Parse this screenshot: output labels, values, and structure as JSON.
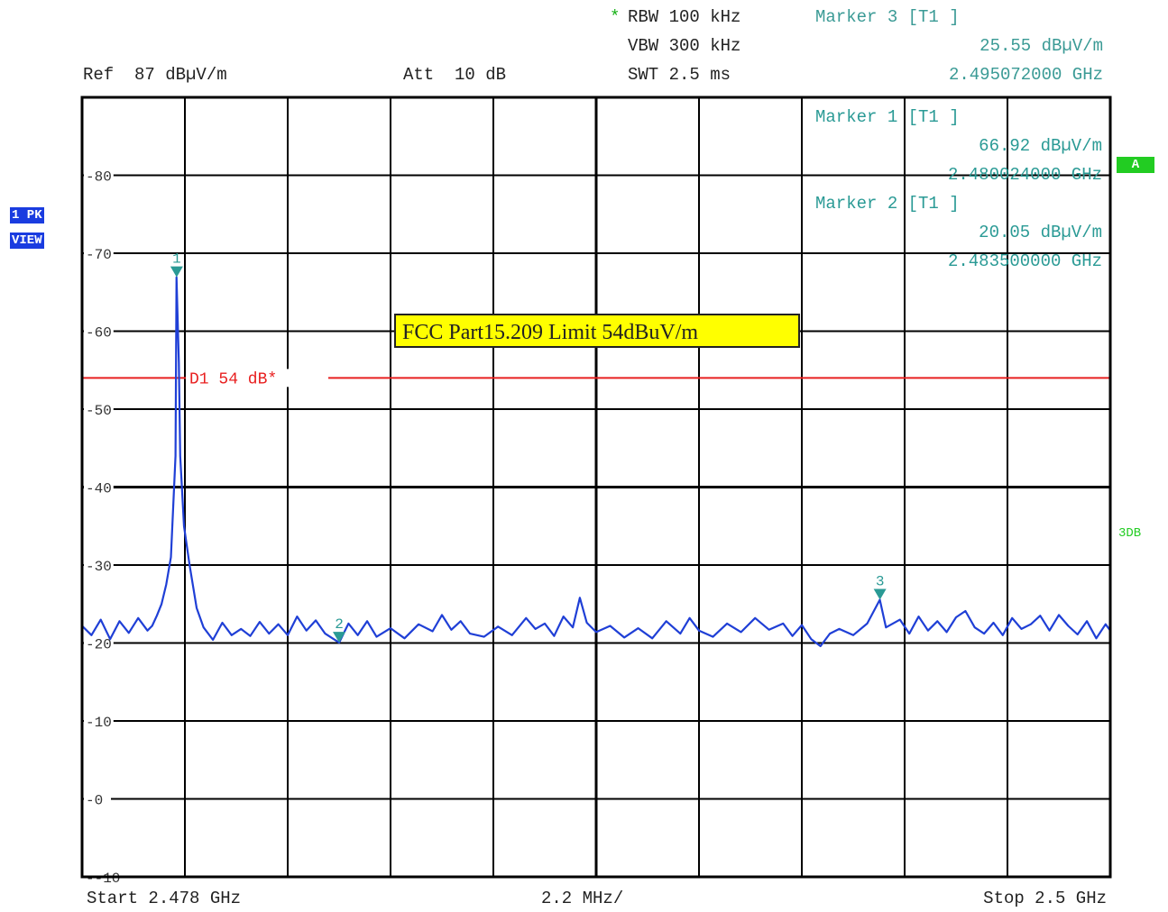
{
  "header": {
    "rbw_star": "*",
    "rbw": "RBW 100 kHz",
    "vbw": "VBW 300 kHz",
    "swt": "SWT 2.5 ms",
    "ref": "Ref  87 dBµV/m",
    "att": "Att  10 dB"
  },
  "markers_text": {
    "m3_title": "Marker 3 [T1 ]",
    "m3_level": "25.55 dBµV/m",
    "m3_freq": "2.495072000 GHz",
    "m1_title": "Marker 1 [T1 ]",
    "m1_level": "66.92 dBµV/m",
    "m1_freq": "2.480024000 GHz",
    "m2_title": "Marker 2 [T1 ]",
    "m2_level": "20.05 dBµV/m",
    "m2_freq": "2.483500000 GHz"
  },
  "side": {
    "pk_label": "1 PK",
    "view_label": "VIEW",
    "a_label": "A",
    "threedb_label": "3DB"
  },
  "footer": {
    "start": "Start 2.478 GHz",
    "span_div": "2.2 MHz/",
    "stop": "Stop 2.5 GHz"
  },
  "colors": {
    "trace": "#1f3fd6",
    "limit_line": "#e82020",
    "marker": "#2a9a95",
    "grid": "#000000",
    "annotation_bg": "#ffff00"
  },
  "chart_data": {
    "type": "line",
    "x_unit": "GHz",
    "y_unit": "dBµV/m",
    "xlim": [
      2.478,
      2.5
    ],
    "ylim": [
      -10,
      90
    ],
    "x_div": 0.0022,
    "ytick_labels": [
      "80",
      "70",
      "60",
      "50",
      "40",
      "30",
      "20",
      "10",
      "0",
      "-10"
    ],
    "grid": true,
    "limit_line": {
      "label": "D1 54 dB*",
      "value": 54
    },
    "annotation": "FCC Part15.209 Limit 54dBuV/m",
    "markers": [
      {
        "label": "1",
        "x": 2.480024,
        "y": 66.92
      },
      {
        "label": "2",
        "x": 2.4835,
        "y": 20.05
      },
      {
        "label": "3",
        "x": 2.495072,
        "y": 25.55
      }
    ],
    "series": [
      {
        "points": [
          [
            2.478,
            22.2
          ],
          [
            2.4782,
            21.0
          ],
          [
            2.4784,
            23.0
          ],
          [
            2.4786,
            20.5
          ],
          [
            2.4788,
            22.8
          ],
          [
            2.479,
            21.3
          ],
          [
            2.4792,
            23.2
          ],
          [
            2.4794,
            21.6
          ],
          [
            2.4795,
            22.2
          ],
          [
            2.4796,
            23.5
          ],
          [
            2.4797,
            25.0
          ],
          [
            2.4798,
            27.5
          ],
          [
            2.4799,
            31.0
          ],
          [
            2.48,
            44.0
          ],
          [
            2.48002,
            66.92
          ],
          [
            2.48007,
            56.0
          ],
          [
            2.4801,
            44.0
          ],
          [
            2.48018,
            35.0
          ],
          [
            2.4803,
            30.0
          ],
          [
            2.48045,
            24.5
          ],
          [
            2.4806,
            22.0
          ],
          [
            2.4808,
            20.4
          ],
          [
            2.481,
            22.6
          ],
          [
            2.4812,
            21.0
          ],
          [
            2.4814,
            21.8
          ],
          [
            2.4816,
            20.9
          ],
          [
            2.4818,
            22.7
          ],
          [
            2.482,
            21.2
          ],
          [
            2.4822,
            22.4
          ],
          [
            2.4824,
            21.0
          ],
          [
            2.4826,
            23.4
          ],
          [
            2.4828,
            21.6
          ],
          [
            2.483,
            22.9
          ],
          [
            2.4832,
            21.2
          ],
          [
            2.4835,
            20.05
          ],
          [
            2.4837,
            22.5
          ],
          [
            2.4839,
            21.0
          ],
          [
            2.4841,
            22.8
          ],
          [
            2.4843,
            20.8
          ],
          [
            2.4846,
            21.9
          ],
          [
            2.4849,
            20.6
          ],
          [
            2.4852,
            22.4
          ],
          [
            2.4855,
            21.5
          ],
          [
            2.4857,
            23.6
          ],
          [
            2.4859,
            21.7
          ],
          [
            2.4861,
            22.8
          ],
          [
            2.4863,
            21.2
          ],
          [
            2.4866,
            20.8
          ],
          [
            2.4869,
            22.1
          ],
          [
            2.4872,
            21.0
          ],
          [
            2.4875,
            23.2
          ],
          [
            2.4877,
            21.8
          ],
          [
            2.4879,
            22.5
          ],
          [
            2.4881,
            20.9
          ],
          [
            2.4883,
            23.4
          ],
          [
            2.4885,
            22.0
          ],
          [
            2.48865,
            25.8
          ],
          [
            2.4888,
            22.6
          ],
          [
            2.489,
            21.4
          ],
          [
            2.4893,
            22.2
          ],
          [
            2.4896,
            20.7
          ],
          [
            2.4899,
            21.9
          ],
          [
            2.4902,
            20.6
          ],
          [
            2.4905,
            22.8
          ],
          [
            2.4908,
            21.2
          ],
          [
            2.491,
            23.2
          ],
          [
            2.4912,
            21.6
          ],
          [
            2.4915,
            20.8
          ],
          [
            2.4918,
            22.5
          ],
          [
            2.4921,
            21.4
          ],
          [
            2.4924,
            23.2
          ],
          [
            2.4927,
            21.7
          ],
          [
            2.493,
            22.5
          ],
          [
            2.4932,
            20.9
          ],
          [
            2.4934,
            22.3
          ],
          [
            2.4936,
            20.5
          ],
          [
            2.4938,
            19.6
          ],
          [
            2.494,
            21.2
          ],
          [
            2.4942,
            21.8
          ],
          [
            2.4945,
            21.0
          ],
          [
            2.4948,
            22.5
          ],
          [
            2.49507,
            25.55
          ],
          [
            2.4952,
            22.0
          ],
          [
            2.4955,
            23.0
          ],
          [
            2.4957,
            21.2
          ],
          [
            2.4959,
            23.4
          ],
          [
            2.4961,
            21.6
          ],
          [
            2.4963,
            22.8
          ],
          [
            2.4965,
            21.4
          ],
          [
            2.4967,
            23.3
          ],
          [
            2.4969,
            24.1
          ],
          [
            2.4971,
            22.0
          ],
          [
            2.4973,
            21.2
          ],
          [
            2.4975,
            22.6
          ],
          [
            2.4977,
            21.0
          ],
          [
            2.4979,
            23.2
          ],
          [
            2.4981,
            21.8
          ],
          [
            2.4983,
            22.4
          ],
          [
            2.4985,
            23.5
          ],
          [
            2.4987,
            21.6
          ],
          [
            2.4989,
            23.6
          ],
          [
            2.4991,
            22.2
          ],
          [
            2.4993,
            21.1
          ],
          [
            2.4995,
            22.8
          ],
          [
            2.4997,
            20.6
          ],
          [
            2.4999,
            22.4
          ],
          [
            2.5,
            21.6
          ]
        ]
      }
    ]
  }
}
